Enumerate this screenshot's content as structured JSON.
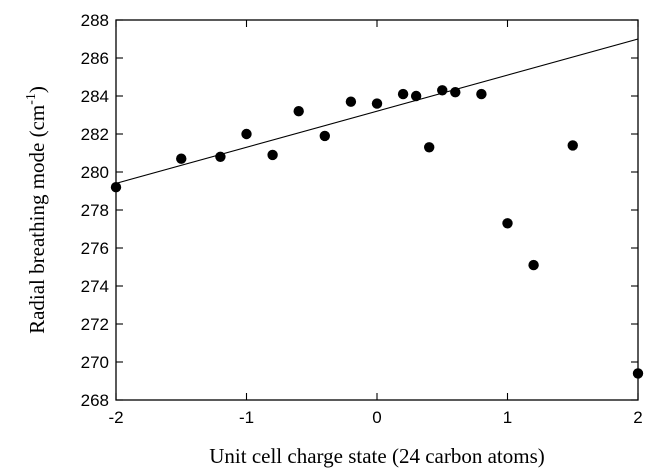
{
  "chart_data": {
    "type": "scatter",
    "title": "",
    "xlabel": "Unit cell charge state (24 carbon atoms)",
    "ylabel": "Radial breathing mode  (cm",
    "ylabel_superscript": "-1",
    "ylabel_suffix": ")",
    "xlim": [
      -2,
      2
    ],
    "ylim": [
      268,
      288
    ],
    "x_ticks": [
      -2,
      -1,
      0,
      1,
      2
    ],
    "y_ticks": [
      268,
      270,
      272,
      274,
      276,
      278,
      280,
      282,
      284,
      286,
      288
    ],
    "grid": false,
    "legend": "none",
    "series": [
      {
        "marker": "filled-circle",
        "color": "#000000",
        "x": [
          -2.0,
          -1.5,
          -1.2,
          -1.0,
          -0.8,
          -0.6,
          -0.4,
          -0.2,
          0.0,
          0.2,
          0.3,
          0.4,
          0.5,
          0.6,
          0.8,
          1.0,
          1.2,
          1.5,
          2.0
        ],
        "y": [
          279.2,
          280.7,
          280.8,
          282.0,
          280.9,
          283.2,
          281.9,
          283.7,
          283.6,
          284.1,
          284.0,
          281.3,
          284.3,
          284.2,
          284.1,
          277.3,
          275.1,
          281.4,
          269.4
        ]
      }
    ],
    "fit_line": {
      "x": [
        -2,
        2
      ],
      "y": [
        279.4,
        287.0
      ],
      "color": "#000000"
    }
  }
}
